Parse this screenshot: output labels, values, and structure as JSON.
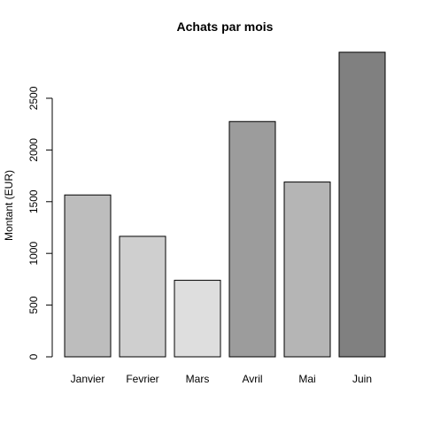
{
  "chart_data": {
    "type": "bar",
    "title": "Achats par mois",
    "xlabel": "",
    "ylabel": "Montant (EUR)",
    "categories": [
      "Janvier",
      "Fevrier",
      "Mars",
      "Avril",
      "Mai",
      "Juin"
    ],
    "values": [
      1565,
      1165,
      740,
      2275,
      1690,
      2945
    ],
    "bar_colors": [
      "#bdbdbd",
      "#cfcfcf",
      "#dedede",
      "#9c9c9c",
      "#b5b5b5",
      "#808080"
    ],
    "ylim": [
      0,
      3000
    ],
    "yticks": [
      0,
      500,
      1000,
      1500,
      2000,
      2500
    ],
    "grid": false,
    "legend": "none"
  }
}
